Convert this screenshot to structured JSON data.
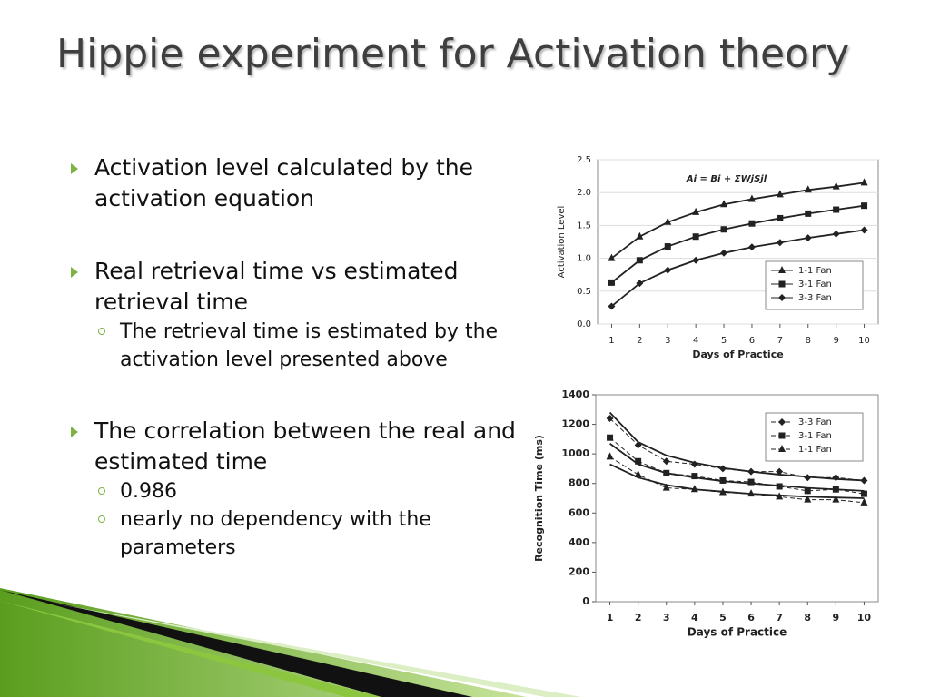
{
  "slide": {
    "title": "Hippie experiment for Activation theory",
    "bullets": [
      {
        "text": "Activation level calculated by the activation equation",
        "sub": []
      },
      {
        "text": "Real retrieval time vs estimated retrieval time",
        "sub": [
          "The retrieval time is estimated by the activation level presented above"
        ]
      },
      {
        "text": "The correlation between the real and estimated time",
        "sub": [
          "0.986",
          "nearly no dependency with the parameters"
        ]
      }
    ]
  },
  "chart_data": [
    {
      "type": "line",
      "annotation": "Ai = Bi + ΣWjSjl",
      "x_label": "Days of Practice",
      "y_label": "Activation Level",
      "x": [
        1,
        2,
        3,
        4,
        5,
        6,
        7,
        8,
        9,
        10
      ],
      "xlim": [
        0.5,
        10.5
      ],
      "xticks": [
        1,
        2,
        3,
        4,
        5,
        6,
        7,
        8,
        9,
        10
      ],
      "ylim": [
        0,
        2.5
      ],
      "yticks": [
        {
          "value": 0,
          "label": "0.0"
        },
        0.5,
        {
          "value": 1,
          "label": "1.0"
        },
        1.5,
        {
          "value": 2,
          "label": "2.0"
        },
        2.5
      ],
      "grid": true,
      "legend": "lower right",
      "series": [
        {
          "name": "1-1 Fan",
          "color": "#222222",
          "marker": "triangle",
          "values": [
            1.0,
            1.33,
            1.55,
            1.7,
            1.82,
            1.9,
            1.97,
            2.04,
            2.09,
            2.15
          ]
        },
        {
          "name": "3-1 Fan",
          "color": "#222222",
          "marker": "square",
          "values": [
            0.63,
            0.97,
            1.18,
            1.33,
            1.44,
            1.53,
            1.61,
            1.68,
            1.74,
            1.8
          ]
        },
        {
          "name": "3-3 Fan",
          "color": "#222222",
          "marker": "diamond",
          "values": [
            0.27,
            0.62,
            0.82,
            0.97,
            1.08,
            1.17,
            1.24,
            1.31,
            1.37,
            1.43
          ]
        }
      ]
    },
    {
      "type": "line",
      "x_label": "Days of Practice",
      "y_label": "Recognition Time (ms)",
      "x": [
        1,
        2,
        3,
        4,
        5,
        6,
        7,
        8,
        9,
        10
      ],
      "xlim": [
        0.5,
        10.5
      ],
      "xticks": [
        1,
        2,
        3,
        4,
        5,
        6,
        7,
        8,
        9,
        10
      ],
      "ylim": [
        0,
        1400
      ],
      "yticks": [
        0,
        200,
        400,
        600,
        800,
        1000,
        1200,
        1400
      ],
      "grid": false,
      "legend": "upper right",
      "line_style": "dashed",
      "series": [
        {
          "name": "3-3 Fan",
          "color": "#222222",
          "marker": "diamond",
          "values": [
            1240,
            1060,
            950,
            930,
            900,
            880,
            880,
            840,
            840,
            820
          ]
        },
        {
          "name": "3-1 Fan",
          "color": "#222222",
          "marker": "square",
          "values": [
            1110,
            950,
            870,
            850,
            820,
            810,
            780,
            750,
            760,
            730
          ]
        },
        {
          "name": "1-1 Fan",
          "color": "#222222",
          "marker": "triangle",
          "values": [
            980,
            860,
            770,
            760,
            740,
            730,
            710,
            690,
            690,
            670
          ]
        }
      ],
      "fits": [
        {
          "color": "#222222",
          "values": [
            1280,
            1080,
            990,
            940,
            905,
            880,
            860,
            845,
            830,
            820
          ]
        },
        {
          "color": "#222222",
          "values": [
            1070,
            930,
            870,
            840,
            815,
            800,
            785,
            770,
            760,
            750
          ]
        },
        {
          "color": "#222222",
          "values": [
            930,
            840,
            790,
            760,
            745,
            730,
            720,
            710,
            705,
            700
          ]
        }
      ]
    }
  ]
}
